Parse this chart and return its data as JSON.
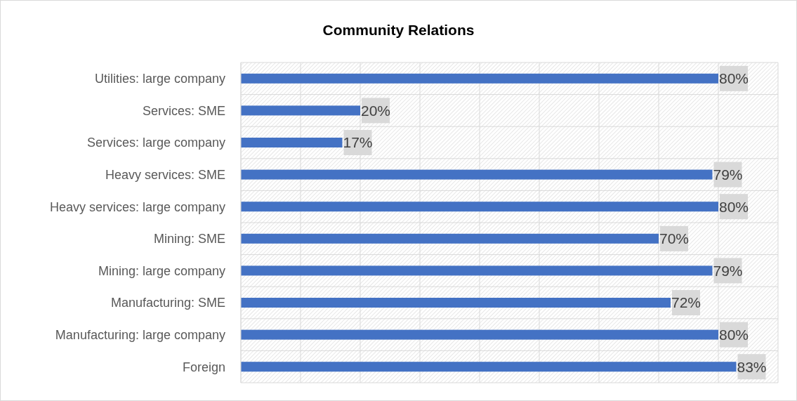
{
  "chart_data": {
    "type": "bar",
    "orientation": "horizontal",
    "title": "Community Relations",
    "categories": [
      "Utilities: large company",
      "Services: SME",
      "Services: large company",
      "Heavy services: SME",
      "Heavy services: large company",
      "Mining: SME",
      "Mining: large company",
      "Manufacturing: SME",
      "Manufacturing: large company",
      "Foreign"
    ],
    "values": [
      80,
      20,
      17,
      79,
      80,
      70,
      79,
      72,
      80,
      83
    ],
    "value_labels": [
      "80%",
      "20%",
      "17%",
      "79%",
      "80%",
      "70%",
      "79%",
      "72%",
      "80%",
      "83%"
    ],
    "color": "#4472c4",
    "xlim": [
      0,
      90
    ],
    "xticks": [
      {
        "value": 0,
        "label": null
      },
      {
        "value": 10,
        "label": null
      },
      {
        "value": 20,
        "label": null
      },
      {
        "value": 30,
        "label": null
      },
      {
        "value": 40,
        "label": null
      },
      {
        "value": 50,
        "label": null
      },
      {
        "value": 60,
        "label": null
      },
      {
        "value": 70,
        "label": null
      },
      {
        "value": 80,
        "label": null
      },
      {
        "value": 90,
        "label": null
      }
    ],
    "grid": true,
    "tick_labels": "y"
  }
}
